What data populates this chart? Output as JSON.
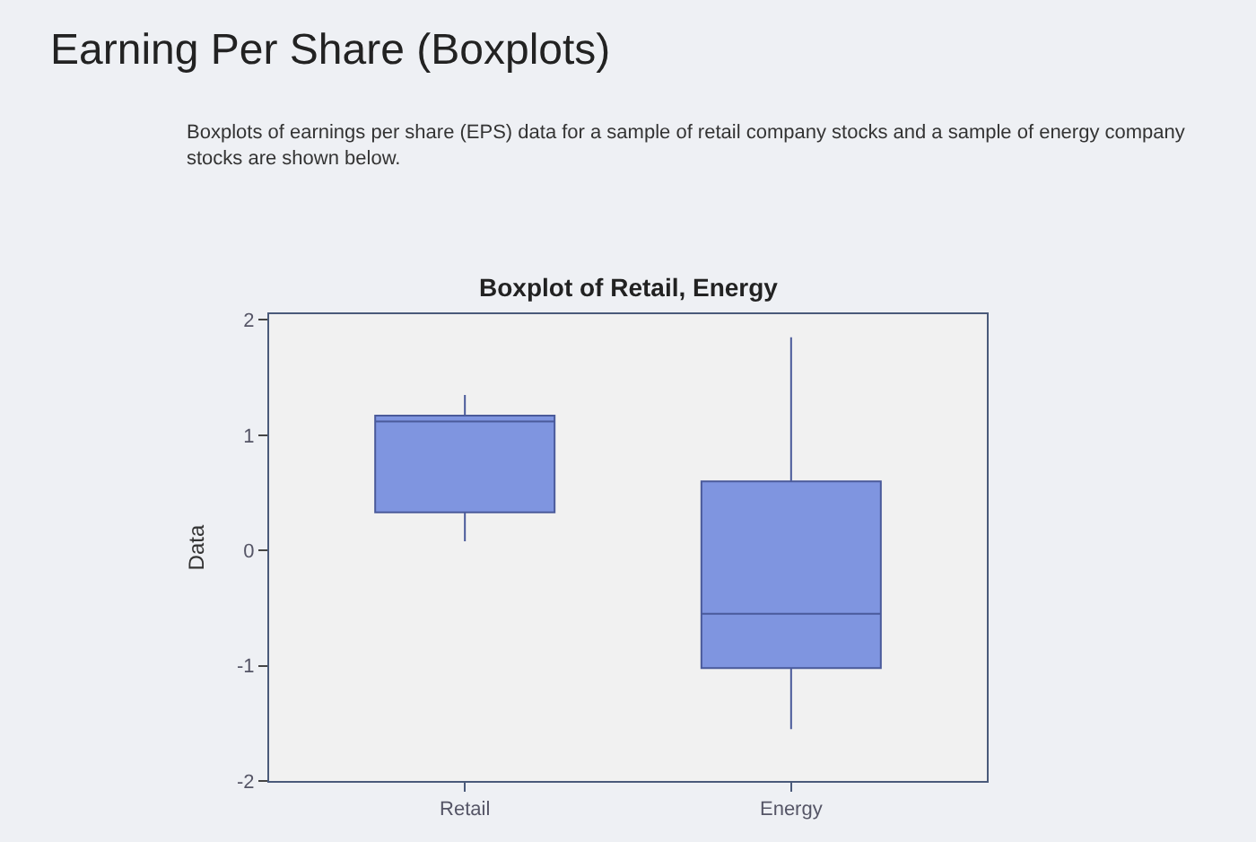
{
  "chart_data": {
    "type": "box",
    "title": "Earning Per Share (Boxplots)",
    "subtitle": "Boxplots of earnings per share (EPS) data for a sample of retail company stocks and a sample of energy company stocks are shown below.",
    "annotations": [
      "Boxplot of Retail, Energy"
    ],
    "ylabel": "Data",
    "categories": [
      "Retail",
      "Energy"
    ],
    "boxes": [
      {
        "low": 0.08,
        "q1": 0.33,
        "median": 1.12,
        "q3": 1.17,
        "high": 1.35
      },
      {
        "low": -1.55,
        "q1": -1.02,
        "median": -0.55,
        "q3": 0.6,
        "high": 1.85
      }
    ],
    "color": "#7f95e0",
    "ylim": [
      -2,
      2.05
    ],
    "yticks": [
      -2,
      -1,
      0,
      1,
      2
    ],
    "grid": false,
    "legend": false
  }
}
